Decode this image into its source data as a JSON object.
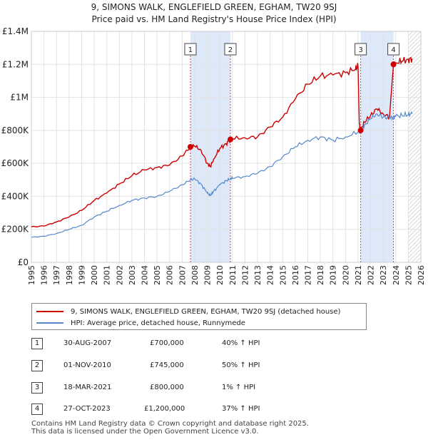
{
  "title": {
    "line1": "9, SIMONS WALK, ENGLEFIELD GREEN, EGHAM, TW20 9SJ",
    "line2": "Price paid vs. HM Land Registry's House Price Index (HPI)"
  },
  "chart_data": {
    "type": "line",
    "title": "9, SIMONS WALK, ENGLEFIELD GREEN, EGHAM, TW20 9SJ — Price paid vs. HM Land Registry's House Price Index (HPI)",
    "xlabel": "",
    "ylabel": "",
    "xlim": [
      1995,
      2026
    ],
    "ylim": [
      0,
      1400000
    ],
    "x_ticks": [
      "1995",
      "1996",
      "1997",
      "1998",
      "1999",
      "2000",
      "2001",
      "2002",
      "2003",
      "2004",
      "2005",
      "2006",
      "2007",
      "2008",
      "2009",
      "2010",
      "2011",
      "2012",
      "2013",
      "2014",
      "2015",
      "2016",
      "2017",
      "2018",
      "2019",
      "2020",
      "2021",
      "2022",
      "2023",
      "2024",
      "2025",
      "2026"
    ],
    "y_ticks": [
      {
        "value": 0,
        "label": "£0"
      },
      {
        "value": 200000,
        "label": "£200K"
      },
      {
        "value": 400000,
        "label": "£400K"
      },
      {
        "value": 600000,
        "label": "£600K"
      },
      {
        "value": 800000,
        "label": "£800K"
      },
      {
        "value": 1000000,
        "label": "£1M"
      },
      {
        "value": 1200000,
        "label": "£1.2M"
      },
      {
        "value": 1400000,
        "label": "£1.4M"
      }
    ],
    "grid": true,
    "colors": {
      "price": "#cc0000",
      "hpi": "#5588cc",
      "shade": "#dde8f8",
      "marker_line": "#cc4444"
    },
    "forecast_from": 2025.0,
    "shaded_ranges": [
      [
        2007.66,
        2010.84
      ],
      [
        2021.21,
        2023.82
      ]
    ],
    "series": [
      {
        "name": "9, SIMONS WALK, ENGLEFIELD GREEN, EGHAM, TW20 9SJ (detached house)",
        "color": "#cc0000",
        "x": [
          1995.0,
          1996.0,
          1997.0,
          1998.0,
          1999.0,
          2000.0,
          2001.0,
          2002.0,
          2003.0,
          2004.0,
          2005.0,
          2006.0,
          2007.0,
          2007.66,
          2008.0,
          2008.5,
          2009.0,
          2009.25,
          2009.5,
          2010.0,
          2010.5,
          2010.84,
          2011.0,
          2012.0,
          2013.0,
          2014.0,
          2015.0,
          2016.0,
          2017.0,
          2018.0,
          2019.0,
          2020.0,
          2020.8,
          2021.0,
          2021.1,
          2021.21,
          2021.5,
          2022.0,
          2022.5,
          2023.0,
          2023.5,
          2023.82,
          2024.0,
          2024.5,
          2025.0,
          2025.3
        ],
        "y": [
          215000,
          220000,
          245000,
          275000,
          315000,
          375000,
          420000,
          475000,
          525000,
          560000,
          575000,
          590000,
          645000,
          700000,
          705000,
          680000,
          600000,
          580000,
          625000,
          690000,
          720000,
          745000,
          750000,
          755000,
          760000,
          820000,
          880000,
          990000,
          1080000,
          1130000,
          1135000,
          1150000,
          1170000,
          1190000,
          840000,
          800000,
          850000,
          890000,
          930000,
          900000,
          880000,
          1200000,
          1210000,
          1220000,
          1230000,
          1235000
        ]
      },
      {
        "name": "HPI: Average price, detached house, Runnymede",
        "color": "#5588cc",
        "x": [
          1995.0,
          1996.0,
          1997.0,
          1998.0,
          1999.0,
          2000.0,
          2001.0,
          2002.0,
          2003.0,
          2004.0,
          2005.0,
          2006.0,
          2007.0,
          2007.66,
          2008.0,
          2008.5,
          2009.0,
          2009.25,
          2009.5,
          2010.0,
          2010.5,
          2010.84,
          2011.0,
          2012.0,
          2013.0,
          2014.0,
          2015.0,
          2016.0,
          2017.0,
          2018.0,
          2019.0,
          2020.0,
          2021.0,
          2021.21,
          2021.5,
          2022.0,
          2022.5,
          2023.0,
          2023.5,
          2023.82,
          2024.0,
          2024.5,
          2025.0,
          2025.3
        ],
        "y": [
          152000,
          158000,
          175000,
          200000,
          225000,
          275000,
          310000,
          345000,
          375000,
          390000,
          400000,
          430000,
          470000,
          500000,
          505000,
          475000,
          420000,
          405000,
          430000,
          470000,
          495000,
          505000,
          510000,
          520000,
          540000,
          580000,
          640000,
          700000,
          740000,
          760000,
          740000,
          760000,
          790000,
          795000,
          830000,
          870000,
          900000,
          880000,
          875000,
          880000,
          885000,
          890000,
          895000,
          900000
        ]
      }
    ],
    "sales": [
      {
        "label": "1",
        "x": 2007.66,
        "y": 700000
      },
      {
        "label": "2",
        "x": 2010.84,
        "y": 745000
      },
      {
        "label": "3",
        "x": 2021.21,
        "y": 800000
      },
      {
        "label": "4",
        "x": 2023.82,
        "y": 1200000
      }
    ]
  },
  "legend": {
    "price_label": "9, SIMONS WALK, ENGLEFIELD GREEN, EGHAM, TW20 9SJ (detached house)",
    "hpi_label": "HPI: Average price, detached house, Runnymede"
  },
  "transactions": [
    {
      "num": "1",
      "date": "30-AUG-2007",
      "price": "£700,000",
      "hpi": "40% ↑ HPI"
    },
    {
      "num": "2",
      "date": "01-NOV-2010",
      "price": "£745,000",
      "hpi": "50% ↑ HPI"
    },
    {
      "num": "3",
      "date": "18-MAR-2021",
      "price": "£800,000",
      "hpi": "1% ↑ HPI"
    },
    {
      "num": "4",
      "date": "27-OCT-2023",
      "price": "£1,200,000",
      "hpi": "37% ↑ HPI"
    }
  ],
  "footer": {
    "line1": "Contains HM Land Registry data © Crown copyright and database right 2025.",
    "line2": "This data is licensed under the Open Government Licence v3.0."
  }
}
